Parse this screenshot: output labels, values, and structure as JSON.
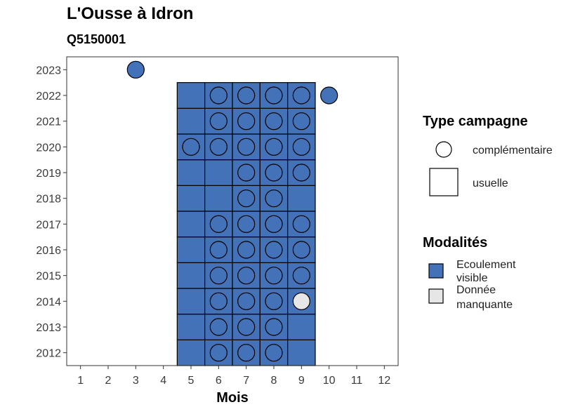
{
  "chart_data": {
    "type": "heatmap",
    "title": "L'Ousse à Idron",
    "subtitle": "Q5150001",
    "xlabel": "Mois",
    "ylabel": "",
    "x_ticks": [
      "1",
      "2",
      "3",
      "4",
      "5",
      "6",
      "7",
      "8",
      "9",
      "10",
      "11",
      "12"
    ],
    "y_ticks": [
      "2012",
      "2013",
      "2014",
      "2015",
      "2016",
      "2017",
      "2018",
      "2019",
      "2020",
      "2021",
      "2022",
      "2023"
    ],
    "xlim": [
      0.5,
      12.5
    ],
    "ylim": [
      2011.5,
      2023.5
    ],
    "grid": false,
    "colors": {
      "Ecoulement visible": "#4472B8",
      "Donnée manquante": "#E6E6E6"
    },
    "legend": {
      "placement": "right",
      "type_title": "Type campagne",
      "type_entries": [
        {
          "label": "complémentaire",
          "shape": "circle"
        },
        {
          "label": "usuelle",
          "shape": "square"
        }
      ],
      "modalites_title": "Modalités",
      "modalites_entries": [
        {
          "label_line1": "Ecoulement",
          "label_line2": "visible",
          "modality": "Ecoulement visible"
        },
        {
          "label_line1": "Donnée",
          "label_line2": "manquante",
          "modality": "Donnée manquante"
        }
      ]
    },
    "squares": [
      {
        "year": 2012,
        "months": [
          5,
          6,
          7,
          8,
          9
        ],
        "modality": "Ecoulement visible"
      },
      {
        "year": 2013,
        "months": [
          5,
          6,
          7,
          8,
          9
        ],
        "modality": "Ecoulement visible"
      },
      {
        "year": 2014,
        "months": [
          5,
          6,
          7,
          8,
          9
        ],
        "modality": "Ecoulement visible"
      },
      {
        "year": 2015,
        "months": [
          5,
          6,
          7,
          8,
          9
        ],
        "modality": "Ecoulement visible"
      },
      {
        "year": 2016,
        "months": [
          5,
          6,
          7,
          8,
          9
        ],
        "modality": "Ecoulement visible"
      },
      {
        "year": 2017,
        "months": [
          5,
          6,
          7,
          8,
          9
        ],
        "modality": "Ecoulement visible"
      },
      {
        "year": 2018,
        "months": [
          5,
          6,
          7,
          8,
          9
        ],
        "modality": "Ecoulement visible"
      },
      {
        "year": 2019,
        "months": [
          5,
          6,
          7,
          8,
          9
        ],
        "modality": "Ecoulement visible"
      },
      {
        "year": 2020,
        "months": [
          5,
          6,
          7,
          8,
          9
        ],
        "modality": "Ecoulement visible"
      },
      {
        "year": 2021,
        "months": [
          5,
          6,
          7,
          8,
          9
        ],
        "modality": "Ecoulement visible"
      },
      {
        "year": 2022,
        "months": [
          5,
          6,
          7,
          8,
          9
        ],
        "modality": "Ecoulement visible"
      }
    ],
    "circles": [
      {
        "year": 2012,
        "months": [
          6,
          7,
          8
        ],
        "modality": "Ecoulement visible"
      },
      {
        "year": 2013,
        "months": [
          6,
          7,
          8
        ],
        "modality": "Ecoulement visible"
      },
      {
        "year": 2014,
        "months": [
          6,
          7,
          8
        ],
        "modality": "Ecoulement visible"
      },
      {
        "year": 2014,
        "months": [
          9
        ],
        "modality": "Donnée manquante"
      },
      {
        "year": 2015,
        "months": [
          6,
          7,
          8,
          9
        ],
        "modality": "Ecoulement visible"
      },
      {
        "year": 2016,
        "months": [
          6,
          7,
          8,
          9
        ],
        "modality": "Ecoulement visible"
      },
      {
        "year": 2017,
        "months": [
          6,
          7,
          8,
          9
        ],
        "modality": "Ecoulement visible"
      },
      {
        "year": 2018,
        "months": [
          7,
          8
        ],
        "modality": "Ecoulement visible"
      },
      {
        "year": 2019,
        "months": [
          7,
          8,
          9
        ],
        "modality": "Ecoulement visible"
      },
      {
        "year": 2020,
        "months": [
          5,
          6,
          7,
          8,
          9
        ],
        "modality": "Ecoulement visible"
      },
      {
        "year": 2021,
        "months": [
          6,
          7,
          8,
          9
        ],
        "modality": "Ecoulement visible"
      },
      {
        "year": 2022,
        "months": [
          6,
          7,
          8,
          9,
          10
        ],
        "modality": "Ecoulement visible"
      },
      {
        "year": 2023,
        "months": [
          3
        ],
        "modality": "Ecoulement visible"
      }
    ]
  }
}
